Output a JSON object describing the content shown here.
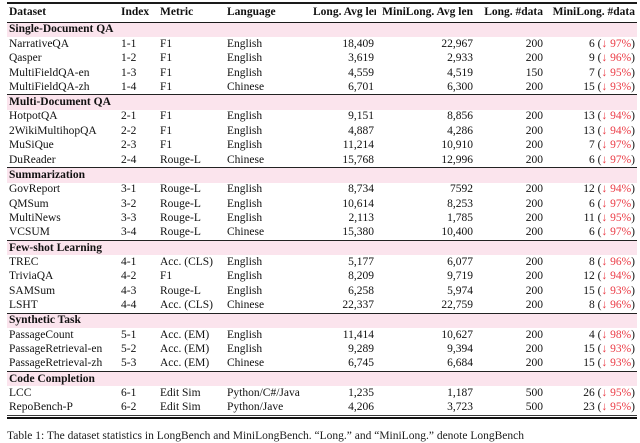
{
  "colors": {
    "section_bg": "#fbe4ed",
    "drop_red": "#eb3c46"
  },
  "page": {
    "caption": "Table 1: The dataset statistics in LongBench and MiniLongBench. “Long.” and “MiniLong.” denote LongBench"
  },
  "table": {
    "headers": [
      "Dataset",
      "Index",
      "Metric",
      "Language",
      "Long. Avg len",
      "MiniLong. Avg len",
      "Long. #data",
      "MiniLong. #data"
    ],
    "sections": [
      {
        "name": "Single-Document QA",
        "rows": [
          {
            "dataset": "NarrativeQA",
            "index": "1-1",
            "metric": "F1",
            "language": "English",
            "long_avg": "18,409",
            "mini_avg": "22,967",
            "long_n": "200",
            "mini": {
              "pre": "6 (",
              "drop": "↓ 97%",
              "post": ")"
            }
          },
          {
            "dataset": "Qasper",
            "index": "1-2",
            "metric": "F1",
            "language": "English",
            "long_avg": "3,619",
            "mini_avg": "2,933",
            "long_n": "200",
            "mini": {
              "pre": "9 (",
              "drop": "↓ 96%",
              "post": ")"
            }
          },
          {
            "dataset": "MultiFieldQA-en",
            "index": "1-3",
            "metric": "F1",
            "language": "English",
            "long_avg": "4,559",
            "mini_avg": "4,519",
            "long_n": "150",
            "mini": {
              "pre": "7 (",
              "drop": "↓ 95%",
              "post": ")"
            }
          },
          {
            "dataset": "MultiFieldQA-zh",
            "index": "1-4",
            "metric": "F1",
            "language": "Chinese",
            "long_avg": "6,701",
            "mini_avg": "6,300",
            "long_n": "200",
            "mini": {
              "pre": "15 (",
              "drop": "↓ 93%",
              "post": ")"
            }
          }
        ]
      },
      {
        "name": "Multi-Document QA",
        "rows": [
          {
            "dataset": "HotpotQA",
            "index": "2-1",
            "metric": "F1",
            "language": "English",
            "long_avg": "9,151",
            "mini_avg": "8,856",
            "long_n": "200",
            "mini": {
              "pre": "13 (",
              "drop": "↓ 94%",
              "post": ")"
            }
          },
          {
            "dataset": "2WikiMultihopQA",
            "index": "2-2",
            "metric": "F1",
            "language": "English",
            "long_avg": "4,887",
            "mini_avg": "4,286",
            "long_n": "200",
            "mini": {
              "pre": "13 (",
              "drop": "↓ 94%",
              "post": ")"
            }
          },
          {
            "dataset": "MuSiQue",
            "index": "2-3",
            "metric": "F1",
            "language": "English",
            "long_avg": "11,214",
            "mini_avg": "10,910",
            "long_n": "200",
            "mini": {
              "pre": "7 (",
              "drop": "↓ 97%",
              "post": ")"
            }
          },
          {
            "dataset": "DuReader",
            "index": "2-4",
            "metric": "Rouge-L",
            "language": "Chinese",
            "long_avg": "15,768",
            "mini_avg": "12,996",
            "long_n": "200",
            "mini": {
              "pre": "6 (",
              "drop": "↓ 97%",
              "post": ")"
            }
          }
        ]
      },
      {
        "name": "Summarization",
        "rows": [
          {
            "dataset": "GovReport",
            "index": "3-1",
            "metric": "Rouge-L",
            "language": "English",
            "long_avg": "8,734",
            "mini_avg": "7592",
            "long_n": "200",
            "mini": {
              "pre": "12 (",
              "drop": "↓ 94%",
              "post": ")"
            }
          },
          {
            "dataset": "QMSum",
            "index": "3-2",
            "metric": "Rouge-L",
            "language": "English",
            "long_avg": "10,614",
            "mini_avg": "8,253",
            "long_n": "200",
            "mini": {
              "pre": "6 (",
              "drop": "↓ 97%",
              "post": ")"
            }
          },
          {
            "dataset": "MultiNews",
            "index": "3-3",
            "metric": "Rouge-L",
            "language": "English",
            "long_avg": "2,113",
            "mini_avg": "1,785",
            "long_n": "200",
            "mini": {
              "pre": "11 (",
              "drop": "↓ 95%",
              "post": ")"
            }
          },
          {
            "dataset": "VCSUM",
            "index": "3-4",
            "metric": "Rouge-L",
            "language": "Chinese",
            "long_avg": "15,380",
            "mini_avg": "10,400",
            "long_n": "200",
            "mini": {
              "pre": "6 (",
              "drop": "↓ 97%",
              "post": ")"
            }
          }
        ]
      },
      {
        "name": "Few-shot Learning",
        "rows": [
          {
            "dataset": "TREC",
            "index": "4-1",
            "metric": "Acc. (CLS)",
            "language": "English",
            "long_avg": "5,177",
            "mini_avg": "6,077",
            "long_n": "200",
            "mini": {
              "pre": "8 (",
              "drop": "↓ 96%",
              "post": ")"
            }
          },
          {
            "dataset": "TriviaQA",
            "index": "4-2",
            "metric": "F1",
            "language": "English",
            "long_avg": "8,209",
            "mini_avg": "9,719",
            "long_n": "200",
            "mini": {
              "pre": "12 (",
              "drop": "↓ 94%",
              "post": ")"
            }
          },
          {
            "dataset": "SAMSum",
            "index": "4-3",
            "metric": "Rouge-L",
            "language": "English",
            "long_avg": "6,258",
            "mini_avg": "5,974",
            "long_n": "200",
            "mini": {
              "pre": "15 (",
              "drop": "↓ 93%",
              "post": ")"
            }
          },
          {
            "dataset": "LSHT",
            "index": "4-4",
            "metric": "Acc. (CLS)",
            "language": "Chinese",
            "long_avg": "22,337",
            "mini_avg": "22,759",
            "long_n": "200",
            "mini": {
              "pre": "8 (",
              "drop": "↓ 96%",
              "post": ")"
            }
          }
        ]
      },
      {
        "name": "Synthetic Task",
        "rows": [
          {
            "dataset": "PassageCount",
            "index": "5-1",
            "metric": "Acc. (EM)",
            "language": "English",
            "long_avg": "11,414",
            "mini_avg": "10,627",
            "long_n": "200",
            "mini": {
              "pre": "4 (",
              "drop": "↓ 98%",
              "post": ")"
            }
          },
          {
            "dataset": "PassageRetrieval-en",
            "index": "5-2",
            "metric": "Acc. (EM)",
            "language": "English",
            "long_avg": "9,289",
            "mini_avg": "9,394",
            "long_n": "200",
            "mini": {
              "pre": "15 (",
              "drop": "↓ 93%",
              "post": ")"
            }
          },
          {
            "dataset": "PassageRetrieval-zh",
            "index": "5-3",
            "metric": "Acc. (EM)",
            "language": "Chinese",
            "long_avg": "6,745",
            "mini_avg": "6,684",
            "long_n": "200",
            "mini": {
              "pre": "15 (",
              "drop": "↓ 93%",
              "post": ")"
            }
          }
        ]
      },
      {
        "name": "Code Completion",
        "rows": [
          {
            "dataset": "LCC",
            "index": "6-1",
            "metric": "Edit Sim",
            "language": "Python/C#/Java",
            "long_avg": "1,235",
            "mini_avg": "1,187",
            "long_n": "500",
            "mini": {
              "pre": "26 (",
              "drop": "↓ 95%",
              "post": ")"
            }
          },
          {
            "dataset": "RepoBench-P",
            "index": "6-2",
            "metric": "Edit Sim",
            "language": "Python/Jave",
            "long_avg": "4,206",
            "mini_avg": "3,723",
            "long_n": "500",
            "mini": {
              "pre": "23 (",
              "drop": "↓ 95%",
              "post": ")"
            }
          }
        ]
      }
    ]
  }
}
